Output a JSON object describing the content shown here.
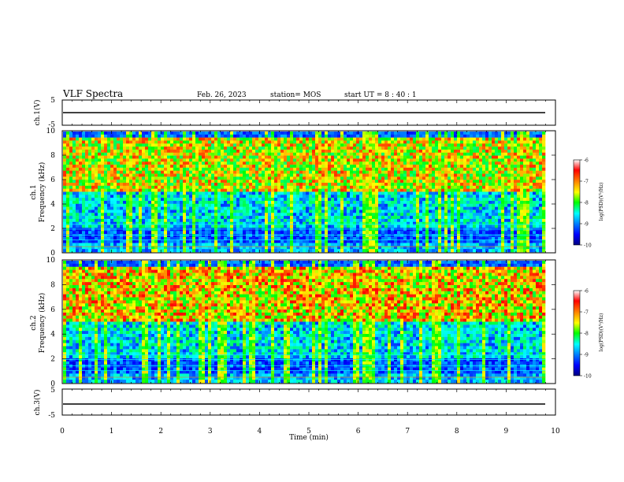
{
  "header": {
    "title": "VLF Spectra",
    "date": "Feb. 26, 2023",
    "station": "station= MOS",
    "start_time": "start  UT =   8 : 40 : 1"
  },
  "chart_data": [
    {
      "type": "line",
      "panel": "ch1-waveform",
      "ylabel": "ch.1(V)",
      "ylim": [
        -5,
        5
      ],
      "yticks": [
        "5",
        "-5"
      ],
      "xlim": [
        0,
        10
      ],
      "series": [
        {
          "values": [
            -0.3,
            -0.3
          ]
        }
      ]
    },
    {
      "type": "heatmap",
      "panel": "ch1-spectrogram",
      "ylabel": "ch.1\nFrequency (kHz)",
      "ylim": [
        0,
        10
      ],
      "yticks": [
        "0",
        "2",
        "4",
        "6",
        "8",
        "10"
      ],
      "xlim": [
        0,
        9.8
      ],
      "colorbar": {
        "label": "log(PSD)(V²/Hz)",
        "range": [
          -10,
          -6
        ],
        "ticks": [
          "-6",
          "-7",
          "-8",
          "-9",
          "-10"
        ]
      }
    },
    {
      "type": "heatmap",
      "panel": "ch2-spectrogram",
      "ylabel": "ch.2\nFrequency (kHz)",
      "ylim": [
        0,
        10
      ],
      "yticks": [
        "0",
        "2",
        "4",
        "6",
        "8",
        "10"
      ],
      "xlim": [
        0,
        9.8
      ],
      "colorbar": {
        "label": "log(PSD)(V²/Hz)",
        "range": [
          -10,
          -6
        ],
        "ticks": [
          "-6",
          "-7",
          "-8",
          "-9",
          "-10"
        ]
      }
    },
    {
      "type": "line",
      "panel": "ch3-waveform",
      "ylabel": "ch.3(V)",
      "ylim": [
        -5,
        5
      ],
      "yticks": [
        "5",
        "-5"
      ],
      "xlim": [
        0,
        10
      ],
      "xlabel": "Time  (min)",
      "xticks": [
        "0",
        "1",
        "2",
        "3",
        "4",
        "5",
        "6",
        "7",
        "8",
        "9",
        "10"
      ],
      "series": [
        {
          "values": [
            -0.3,
            -0.3
          ]
        }
      ]
    }
  ],
  "colors": {
    "colormap": [
      "#000080",
      "#0000ff",
      "#0080ff",
      "#00ffff",
      "#00ff80",
      "#00ff00",
      "#ffff00",
      "#ff8000",
      "#ff0000",
      "#ffffff"
    ]
  }
}
